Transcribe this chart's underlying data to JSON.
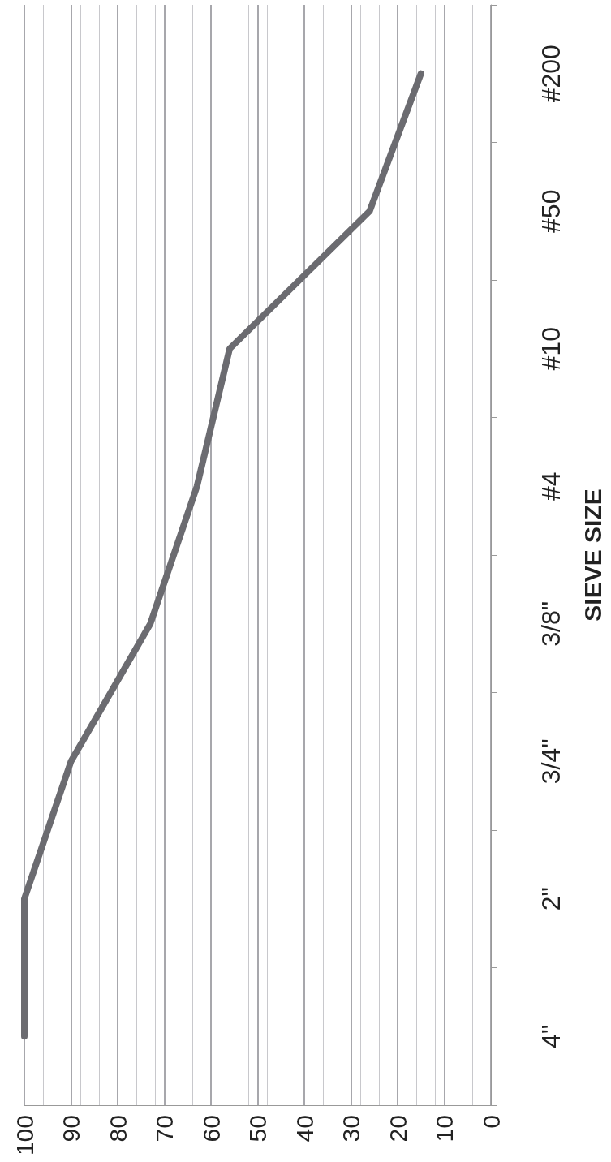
{
  "chart_data": {
    "type": "line",
    "orientation": "horizontal",
    "ylabel": "SIEVE SIZE",
    "categories": [
      "#200",
      "#50",
      "#10",
      "#4",
      "3/8\"",
      "3/4\"",
      "2\"",
      "4\""
    ],
    "series": [
      {
        "color": "#6b6b70",
        "values": [
          15,
          26,
          56,
          63,
          73,
          90,
          100,
          100
        ]
      }
    ],
    "xlim": [
      100,
      0
    ],
    "xticks": [
      100,
      90,
      80,
      70,
      60,
      50,
      40,
      30,
      20,
      10,
      0
    ],
    "grid": "x",
    "marker": "none",
    "line_style": "solid"
  }
}
